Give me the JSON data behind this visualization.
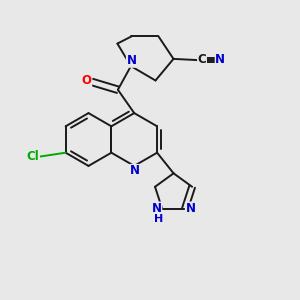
{
  "bg_color": "#e8e8e8",
  "bond_color": "#1a1a1a",
  "atom_colors": {
    "N": "#0000cc",
    "O": "#ff0000",
    "Cl": "#00aa00",
    "C": "#1a1a1a",
    "H": "#0000cc"
  },
  "lw": 1.4
}
